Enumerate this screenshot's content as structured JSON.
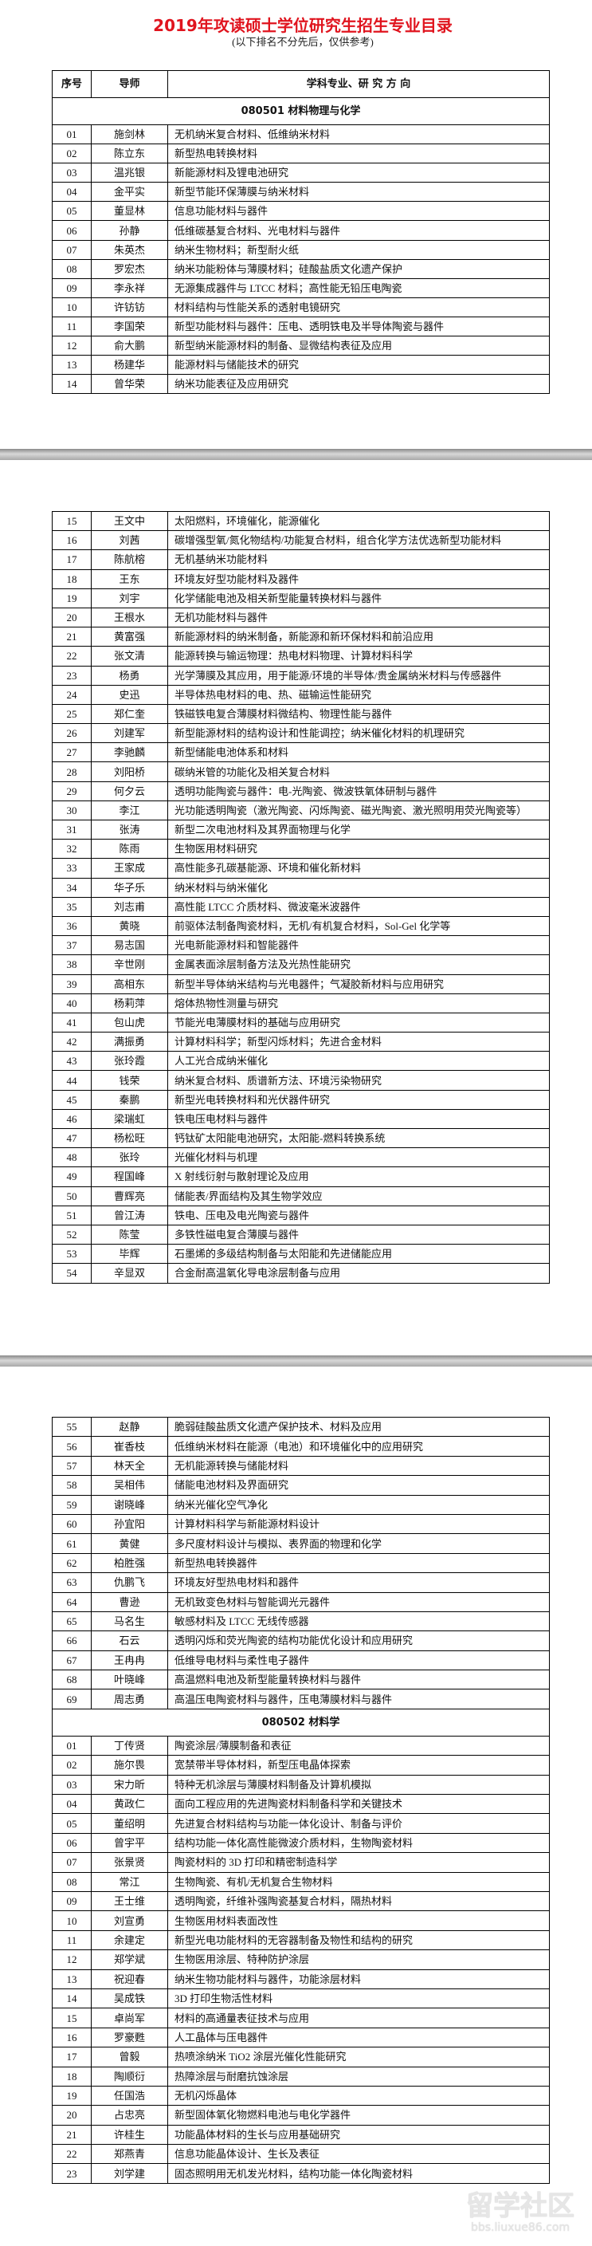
{
  "title": "2019年攻读硕士学位研究生招生专业目录",
  "subtitle": "(以下排名不分先后，仅供参考)",
  "header": {
    "no": "序号",
    "advisor": "导师",
    "topic": "学科专业、研 究 方 向"
  },
  "watermark": {
    "logo": "留学社区",
    "url": "bbs.liuxue86.com"
  },
  "pages": [
    {
      "rows": [
        {
          "section": "080501  材料物理与化学"
        },
        [
          "01",
          "施剑林",
          "无机纳米复合材料、低维纳米材料"
        ],
        [
          "02",
          "陈立东",
          "新型热电转换材料"
        ],
        [
          "03",
          "温兆银",
          "新能源材料及锂电池研究"
        ],
        [
          "04",
          "金平实",
          "新型节能环保薄膜与纳米材料"
        ],
        [
          "05",
          "董显林",
          "信息功能材料与器件"
        ],
        [
          "06",
          "孙静",
          "低维碳基复合材料、光电材料与器件"
        ],
        [
          "07",
          "朱英杰",
          "纳米生物材料；新型耐火纸"
        ],
        [
          "08",
          "罗宏杰",
          "纳米功能粉体与薄膜材料；硅酸盐质文化遗产保护"
        ],
        [
          "09",
          "李永祥",
          "无源集成器件与 LTCC 材料；高性能无铅压电陶瓷"
        ],
        [
          "10",
          "许钫钫",
          "材料结构与性能关系的透射电镜研究"
        ],
        [
          "11",
          "李国荣",
          "新型功能材料与器件：压电、透明铁电及半导体陶瓷与器件"
        ],
        [
          "12",
          "俞大鹏",
          "新型纳米能源材料的制备、显微结构表征及应用"
        ],
        [
          "13",
          "杨建华",
          "能源材料与储能技术的研究"
        ],
        [
          "14",
          "曾华荣",
          "纳米功能表征及应用研究"
        ]
      ]
    },
    {
      "rows": [
        [
          "15",
          "王文中",
          "太阳燃料，环境催化，能源催化"
        ],
        [
          "16",
          "刘茜",
          "碳增强型氧/氮化物结构/功能复合材料，组合化学方法优选新型功能材料"
        ],
        [
          "17",
          "陈航榕",
          "无机基纳米功能材料"
        ],
        [
          "18",
          "王东",
          "环境友好型功能材料及器件"
        ],
        [
          "19",
          "刘宇",
          "化学储能电池及相关新型能量转换材料与器件"
        ],
        [
          "20",
          "王根水",
          "无机功能材料与器件"
        ],
        [
          "21",
          "黄富强",
          "新能源材料的纳米制备，新能源和新环保材料和前沿应用"
        ],
        [
          "22",
          "张文清",
          "能源转换与输运物理：热电材料物理、计算材料科学"
        ],
        [
          "23",
          "杨勇",
          "光学薄膜及其应用，用于能源/环境的半导体/贵金属纳米材料与传感器件"
        ],
        [
          "24",
          "史迅",
          "半导体热电材料的电、热、磁输运性能研究"
        ],
        [
          "25",
          "郑仁奎",
          "铁磁铁电复合薄膜材料微结构、物理性能与器件"
        ],
        [
          "26",
          "刘建军",
          "新型能源材料的结构设计和性能调控；纳米催化材料的机理研究"
        ],
        [
          "27",
          "李驰麟",
          "新型储能电池体系和材料"
        ],
        [
          "28",
          "刘阳桥",
          "碳纳米管的功能化及相关复合材料"
        ],
        [
          "29",
          "何夕云",
          "透明功能陶瓷与器件：电-光陶瓷、微波铁氧体研制与器件"
        ],
        [
          "30",
          "李江",
          "光功能透明陶瓷（激光陶瓷、闪烁陶瓷、磁光陶瓷、激光照明用荧光陶瓷等）"
        ],
        [
          "31",
          "张涛",
          "新型二次电池材料及其界面物理与化学"
        ],
        [
          "32",
          "陈雨",
          "生物医用材料研究"
        ],
        [
          "33",
          "王家成",
          "高性能多孔碳基能源、环境和催化新材料"
        ],
        [
          "34",
          "华子乐",
          "纳米材料与纳米催化"
        ],
        [
          "35",
          "刘志甫",
          "高性能 LTCC 介质材料、微波毫米波器件"
        ],
        [
          "36",
          "黄晓",
          "前驱体法制备陶瓷材料，无机/有机复合材料，Sol-Gel 化学等"
        ],
        [
          "37",
          "易志国",
          "光电新能源材料和智能器件"
        ],
        [
          "38",
          "辛世刚",
          "金属表面涂层制备方法及光热性能研究"
        ],
        [
          "39",
          "高相东",
          "新型半导体纳米结构与光电器件；气凝胶新材料与应用研究"
        ],
        [
          "40",
          "杨莉萍",
          "熔体热物性测量与研究"
        ],
        [
          "41",
          "包山虎",
          "节能光电薄膜材料的基础与应用研究"
        ],
        [
          "42",
          "满振勇",
          "计算材料科学；新型闪烁材料；先进合金材料"
        ],
        [
          "43",
          "张玲霞",
          "人工光合成纳米催化"
        ],
        [
          "44",
          "钱荣",
          "纳米复合材料、质谱新方法、环境污染物研究"
        ],
        [
          "45",
          "秦鹏",
          "新型光电转换材料和光伏器件研究"
        ],
        [
          "46",
          "梁瑞虹",
          "铁电压电材料与器件"
        ],
        [
          "47",
          "杨松旺",
          "钙钛矿太阳能电池研究，太阳能-燃料转换系统"
        ],
        [
          "48",
          "张玲",
          "光催化材料与机理"
        ],
        [
          "49",
          "程国峰",
          "X 射线衍射与散射理论及应用"
        ],
        [
          "50",
          "曹辉亮",
          "储能表/界面结构及其生物学效应"
        ],
        [
          "51",
          "曾江涛",
          "铁电、压电及电光陶瓷与器件"
        ],
        [
          "52",
          "陈莹",
          "多铁性磁电复合薄膜与器件"
        ],
        [
          "53",
          "毕辉",
          "石墨烯的多级结构制备与太阳能和先进储能应用"
        ],
        [
          "54",
          "辛显双",
          "合金耐高温氧化导电涂层制备与应用"
        ]
      ]
    },
    {
      "rows": [
        [
          "55",
          "赵静",
          "脆弱硅酸盐质文化遗产保护技术、材料及应用"
        ],
        [
          "56",
          "崔香枝",
          "低维纳米材料在能源（电池）和环境催化中的应用研究"
        ],
        [
          "57",
          "林天全",
          "无机能源转换与储能材料"
        ],
        [
          "58",
          "吴相伟",
          "储能电池材料及界面研究"
        ],
        [
          "59",
          "谢晓峰",
          "纳米光催化空气净化"
        ],
        [
          "60",
          "孙宜阳",
          "计算材料科学与新能源材料设计"
        ],
        [
          "61",
          "黄健",
          "多尺度材料设计与模拟、表界面的物理和化学"
        ],
        [
          "62",
          "柏胜强",
          "新型热电转换器件"
        ],
        [
          "63",
          "仇鹏飞",
          "环境友好型热电材料和器件"
        ],
        [
          "64",
          "曹逊",
          "无机致变色材料与智能调光元器件"
        ],
        [
          "65",
          "马名生",
          "敏感材料及 LTCC 无线传感器"
        ],
        [
          "66",
          "石云",
          "透明闪烁和荧光陶瓷的结构功能优化设计和应用研究"
        ],
        [
          "67",
          "王冉冉",
          "低维导电材料与柔性电子器件"
        ],
        [
          "68",
          "叶晓峰",
          "高温燃料电池及新型能量转换材料与器件"
        ],
        [
          "69",
          "周志勇",
          "高温压电陶瓷材料与器件，压电薄膜材料与器件"
        ],
        {
          "section": "080502  材料学"
        },
        [
          "01",
          "丁传贤",
          "陶瓷涂层/薄膜制备和表征"
        ],
        [
          "02",
          "施尔畏",
          "宽禁带半导体材料，新型压电晶体探索"
        ],
        [
          "03",
          "宋力昕",
          "特种无机涂层与薄膜材料制备及计算机模拟"
        ],
        [
          "04",
          "黄政仁",
          "面向工程应用的先进陶瓷材料制备科学和关键技术"
        ],
        [
          "05",
          "董绍明",
          "先进复合材料结构与功能一体化设计、制备与评价"
        ],
        [
          "06",
          "曾宇平",
          "结构功能一体化高性能微波介质材料，生物陶瓷材料"
        ],
        [
          "07",
          "张景贤",
          "陶瓷材料的 3D 打印和精密制造科学"
        ],
        [
          "08",
          "常江",
          "生物陶瓷、有机/无机复合生物材料"
        ],
        [
          "09",
          "王士维",
          "透明陶瓷，纤维补强陶瓷基复合材料，隔热材料"
        ],
        [
          "10",
          "刘宣勇",
          "生物医用材料表面改性"
        ],
        [
          "11",
          "余建定",
          "新型光电功能材料的无容器制备及物性和结构的研究"
        ],
        [
          "12",
          "郑学斌",
          "生物医用涂层、特种防护涂层"
        ],
        [
          "13",
          "祝迎春",
          "纳米生物功能材料与器件，功能涂层材料"
        ],
        [
          "14",
          "吴成铁",
          "3D 打印生物活性材料"
        ],
        [
          "15",
          "卓尚军",
          "材料的高通量表征技术与应用"
        ],
        [
          "16",
          "罗豪甦",
          "人工晶体与压电器件"
        ],
        [
          "17",
          "曾毅",
          "热喷涂纳米 TiO2 涂层光催化性能研究"
        ],
        [
          "18",
          "陶顺衍",
          "热障涂层与耐磨抗蚀涂层"
        ],
        [
          "19",
          "任国浩",
          "无机闪烁晶体"
        ],
        [
          "20",
          "占忠亮",
          "新型固体氧化物燃料电池与电化学器件"
        ],
        [
          "21",
          "许桂生",
          "功能晶体材料的生长与应用基础研究"
        ],
        [
          "22",
          "郑燕青",
          "信息功能晶体设计、生长及表征"
        ],
        [
          "23",
          "刘学建",
          "固态照明用无机发光材料，结构功能一体化陶瓷材料"
        ]
      ]
    }
  ]
}
